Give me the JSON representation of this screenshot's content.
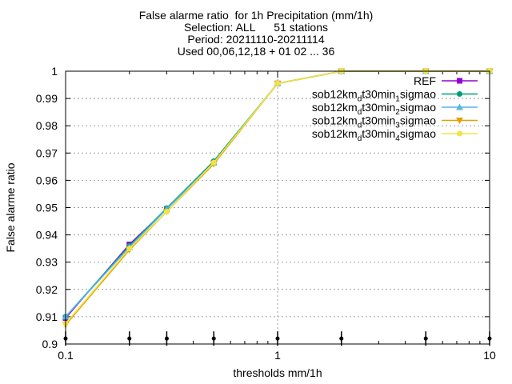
{
  "chart_data": {
    "type": "line",
    "title_lines": [
      "False alarme ratio  for 1h Precipitation (mm/1h)",
      "Selection: ALL      51 stations",
      "Period: 20211110-20211114",
      "Used 00,06,12,18 + 01 02 ... 36"
    ],
    "xlabel": "thresholds mm/1h",
    "ylabel": "False alarme ratio",
    "x_scale": "log",
    "xlim": [
      0.1,
      10
    ],
    "ylim": [
      0.9,
      1.0
    ],
    "x_ticks": [
      {
        "value": 0.1,
        "label": "0.1"
      },
      {
        "value": 1,
        "label": "1"
      },
      {
        "value": 10,
        "label": "10"
      }
    ],
    "y_ticks": [
      {
        "value": 0.9,
        "label": "0.9"
      },
      {
        "value": 0.91,
        "label": "0.91"
      },
      {
        "value": 0.92,
        "label": "0.92"
      },
      {
        "value": 0.93,
        "label": "0.93"
      },
      {
        "value": 0.94,
        "label": "0.94"
      },
      {
        "value": 0.95,
        "label": "0.95"
      },
      {
        "value": 0.96,
        "label": "0.96"
      },
      {
        "value": 0.97,
        "label": "0.97"
      },
      {
        "value": 0.98,
        "label": "0.98"
      },
      {
        "value": 0.99,
        "label": "0.99"
      },
      {
        "value": 1,
        "label": "1"
      }
    ],
    "grid": true,
    "legend_position": "top-right",
    "x": [
      0.1,
      0.2,
      0.3,
      0.5,
      1,
      2,
      5,
      10
    ],
    "threshold_markers_y": 0.902,
    "series": [
      {
        "name": "REF",
        "legend_main": "REF",
        "legend_sub": "",
        "legend_rest": "",
        "legend_sub2": "",
        "legend_tail": "",
        "color": "#9400d3",
        "marker": "square",
        "values": [
          0.9095,
          0.9365,
          0.9495,
          0.9665,
          0.9955,
          1.0,
          1.0,
          1.0
        ]
      },
      {
        "name": "sob12km_dt30min_1sigmao",
        "legend_main": "sob12km",
        "legend_sub": "d",
        "legend_rest": "t30min",
        "legend_sub2": "1",
        "legend_tail": "sigmao",
        "color": "#009e73",
        "marker": "circle",
        "values": [
          0.91,
          0.936,
          0.9498,
          0.967,
          0.9955,
          1.0,
          1.0,
          1.0
        ]
      },
      {
        "name": "sob12km_dt30min_2sigmao",
        "legend_main": "sob12km",
        "legend_sub": "d",
        "legend_rest": "t30min",
        "legend_sub2": "2",
        "legend_tail": "sigmao",
        "color": "#56b4e9",
        "marker": "triangle",
        "values": [
          0.91,
          0.9355,
          0.9495,
          0.9665,
          0.9955,
          1.0,
          1.0,
          1.0
        ]
      },
      {
        "name": "sob12km_dt30min_3sigmao",
        "legend_main": "sob12km",
        "legend_sub": "d",
        "legend_rest": "t30min",
        "legend_sub2": "3",
        "legend_tail": "sigmao",
        "color": "#e69f00",
        "marker": "triangle-down",
        "values": [
          0.907,
          0.9345,
          0.9485,
          0.966,
          0.9955,
          1.0,
          1.0,
          1.0
        ]
      },
      {
        "name": "sob12km_dt30min_4sigmao",
        "legend_main": "sob12km",
        "legend_sub": "d",
        "legend_rest": "t30min",
        "legend_sub2": "4",
        "legend_tail": "sigmao",
        "color": "#f0e442",
        "marker": "circle",
        "values": [
          0.9075,
          0.935,
          0.9485,
          0.9665,
          0.9955,
          1.0,
          1.0,
          1.0
        ]
      }
    ]
  }
}
